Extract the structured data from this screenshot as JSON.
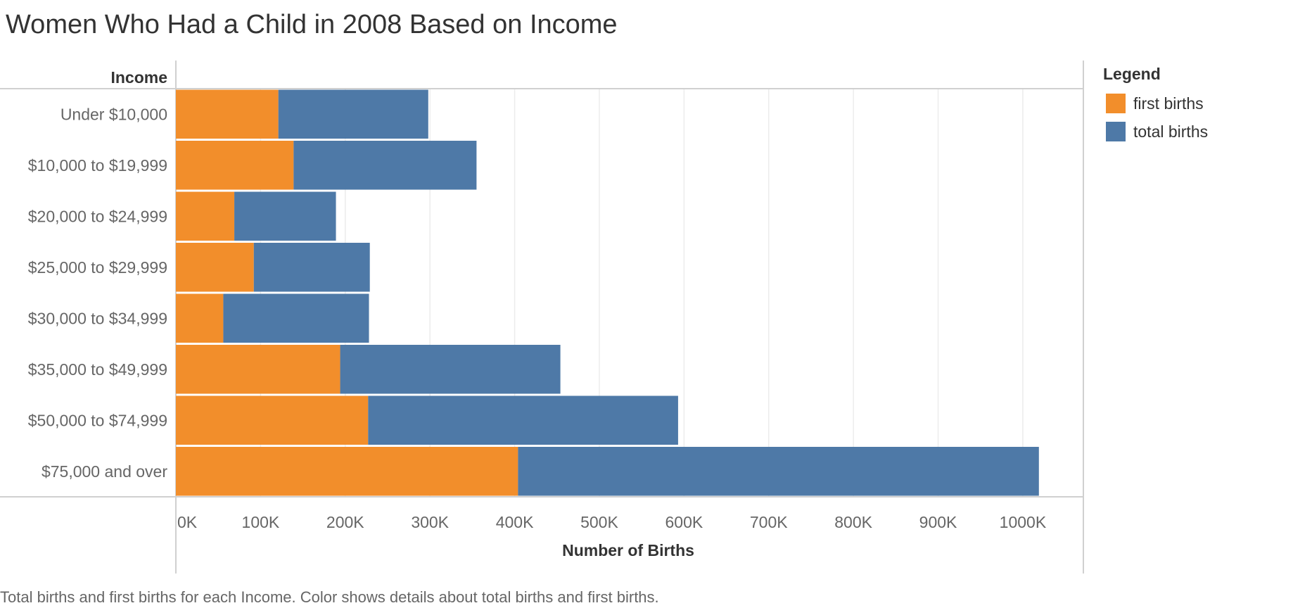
{
  "title": "Women Who Had a Child in 2008 Based on Income",
  "caption": "Total births and first births for each Income.  Color shows details about total births and first births.",
  "legend": {
    "title": "Legend",
    "items": [
      {
        "label": "first births",
        "color": "#f28e2b"
      },
      {
        "label": "total births",
        "color": "#4e79a7"
      }
    ]
  },
  "chart_data": {
    "type": "bar",
    "orientation": "horizontal",
    "stacked": true,
    "title": "Women Who Had a Child in 2008 Based on Income",
    "row_header": "Income",
    "xlabel": "Number of Births",
    "ylabel": "",
    "categories": [
      "Under $10,000",
      "$10,000 to $19,999",
      "$20,000 to $24,999",
      "$25,000 to $29,999",
      "$30,000 to $34,999",
      "$35,000 to $49,999",
      "$50,000 to $74,999",
      "$75,000 and over"
    ],
    "series": [
      {
        "name": "first births",
        "color": "#f28e2b",
        "values": [
          121000,
          139000,
          69000,
          92000,
          56000,
          194000,
          227000,
          404000
        ]
      },
      {
        "name": "total births",
        "color": "#4e79a7",
        "values": [
          177000,
          216000,
          120000,
          137000,
          172000,
          260000,
          366000,
          615000
        ]
      }
    ],
    "xlim": [
      0,
      1070000
    ],
    "xticks": [
      0,
      100000,
      200000,
      300000,
      400000,
      500000,
      600000,
      700000,
      800000,
      900000,
      1000000
    ],
    "xtick_labels": [
      "0K",
      "100K",
      "200K",
      "300K",
      "400K",
      "500K",
      "600K",
      "700K",
      "800K",
      "900K",
      "1000K"
    ],
    "grid": true,
    "legend_position": "right"
  }
}
